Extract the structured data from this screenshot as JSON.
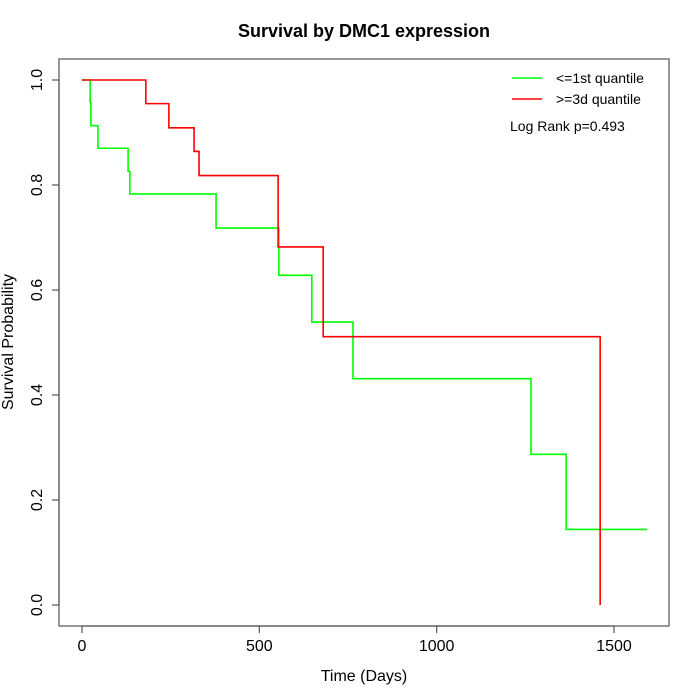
{
  "chart_data": {
    "type": "line",
    "subtype": "kaplan-meier-step",
    "title": "Survival by DMC1 expression",
    "xlabel": "Time (Days)",
    "ylabel": "Survival Probability",
    "xlim": [
      0,
      1650
    ],
    "ylim": [
      0,
      1.0
    ],
    "xticks": [
      0,
      500,
      1000,
      1500
    ],
    "xtick_labels": [
      "0",
      "500",
      "1000",
      "1500"
    ],
    "yticks": [
      0.0,
      0.2,
      0.4,
      0.6,
      0.8,
      1.0
    ],
    "ytick_labels": [
      "0.0",
      "0.2",
      "0.4",
      "0.6",
      "0.8",
      "1.0"
    ],
    "grid": false,
    "legend_position": "top-right",
    "annotation": "Log Rank p=0.493",
    "series": [
      {
        "name": "<=1st quantile",
        "color": "#00ff00",
        "times": [
          0,
          23,
          25,
          45,
          130,
          135,
          378,
          555,
          648,
          764,
          1266,
          1365,
          1593
        ],
        "survival": [
          1.0,
          0.957,
          0.913,
          0.87,
          0.826,
          0.783,
          0.718,
          0.628,
          0.539,
          0.431,
          0.287,
          0.144,
          0.144
        ]
      },
      {
        "name": ">=3d quantile",
        "color": "#ff0000",
        "times": [
          0,
          180,
          245,
          316,
          330,
          553,
          680,
          1461
        ],
        "survival": [
          1.0,
          0.955,
          0.909,
          0.864,
          0.818,
          0.682,
          0.511,
          0.0
        ]
      }
    ]
  }
}
